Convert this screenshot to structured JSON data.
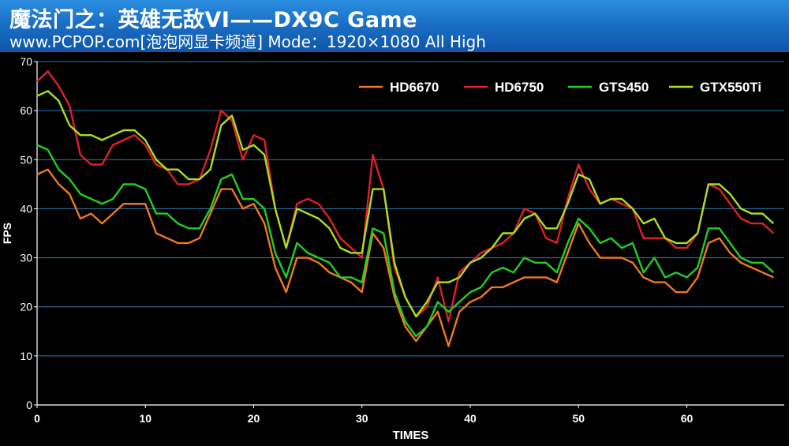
{
  "header": {
    "title": "魔法门之：英雄无敌VI——DX9C Game",
    "subtitle": "www.PCPOP.com[泡泡网显卡频道] Mode：1920×1080 All High"
  },
  "colors": {
    "background": "#000000",
    "grid": "#2e7fb0",
    "axis": "#ffffff",
    "header": "#1a6fc6"
  },
  "chart_data": {
    "type": "line",
    "xlabel": "TIMES",
    "ylabel": "FPS",
    "xlim": [
      0,
      69
    ],
    "ylim": [
      0,
      70
    ],
    "xticks": [
      0,
      10,
      20,
      30,
      40,
      50,
      60
    ],
    "yticks": [
      0,
      10,
      20,
      30,
      40,
      50,
      60,
      70
    ],
    "grid": "horizontal",
    "legend_position": "top-right",
    "x": [
      0,
      1,
      2,
      3,
      4,
      5,
      6,
      7,
      8,
      9,
      10,
      11,
      12,
      13,
      14,
      15,
      16,
      17,
      18,
      19,
      20,
      21,
      22,
      23,
      24,
      25,
      26,
      27,
      28,
      29,
      30,
      31,
      32,
      33,
      34,
      35,
      36,
      37,
      38,
      39,
      40,
      41,
      42,
      43,
      44,
      45,
      46,
      47,
      48,
      49,
      50,
      51,
      52,
      53,
      54,
      55,
      56,
      57,
      58,
      59,
      60,
      61,
      62,
      63,
      64,
      65,
      66,
      67,
      68
    ],
    "series": [
      {
        "name": "HD6670",
        "color": "#f07820",
        "values": [
          47,
          48,
          45,
          43,
          38,
          39,
          37,
          39,
          41,
          41,
          41,
          35,
          34,
          33,
          33,
          34,
          39,
          44,
          44,
          40,
          41,
          37,
          28,
          23,
          30,
          30,
          29,
          27,
          26,
          25,
          23,
          35,
          32,
          22,
          16,
          13,
          16,
          19,
          12,
          19,
          21,
          22,
          24,
          24,
          25,
          26,
          26,
          26,
          25,
          31,
          37,
          33,
          30,
          30,
          30,
          29,
          26,
          25,
          25,
          23,
          23,
          26,
          33,
          34,
          31,
          29,
          28,
          27,
          26
        ]
      },
      {
        "name": "HD6750",
        "color": "#e0202a",
        "values": [
          66,
          68,
          65,
          61,
          51,
          49,
          49,
          53,
          54,
          55,
          53,
          49,
          48,
          45,
          45,
          46,
          52,
          60,
          58,
          50,
          55,
          54,
          40,
          32,
          41,
          42,
          41,
          38,
          34,
          32,
          30,
          51,
          44,
          28,
          22,
          18,
          20,
          26,
          17,
          27,
          29,
          31,
          32,
          33,
          35,
          40,
          39,
          34,
          33,
          42,
          49,
          44,
          41,
          42,
          41,
          40,
          34,
          34,
          34,
          32,
          32,
          35,
          45,
          44,
          41,
          38,
          37,
          37,
          35
        ]
      },
      {
        "name": "GTS450",
        "color": "#20d020",
        "values": [
          53,
          52,
          48,
          46,
          43,
          42,
          41,
          42,
          45,
          45,
          44,
          39,
          39,
          37,
          36,
          36,
          40,
          46,
          47,
          42,
          42,
          40,
          31,
          26,
          33,
          31,
          30,
          29,
          26,
          26,
          25,
          36,
          35,
          23,
          17,
          14,
          16,
          21,
          19,
          21,
          23,
          24,
          27,
          28,
          27,
          30,
          29,
          29,
          27,
          33,
          38,
          36,
          33,
          34,
          32,
          33,
          27,
          30,
          26,
          27,
          26,
          28,
          36,
          36,
          33,
          30,
          29,
          29,
          27
        ]
      },
      {
        "name": "GTX550Ti",
        "color": "#a8e020",
        "values": [
          63,
          64,
          62,
          57,
          55,
          55,
          54,
          55,
          56,
          56,
          54,
          50,
          48,
          48,
          46,
          46,
          48,
          57,
          59,
          52,
          53,
          51,
          40,
          32,
          40,
          39,
          38,
          36,
          32,
          31,
          31,
          44,
          44,
          29,
          22,
          18,
          21,
          25,
          25,
          26,
          29,
          30,
          32,
          35,
          35,
          38,
          39,
          36,
          36,
          41,
          47,
          46,
          41,
          42,
          42,
          40,
          37,
          38,
          34,
          33,
          33,
          35,
          45,
          45,
          43,
          40,
          39,
          39,
          37
        ]
      }
    ]
  }
}
